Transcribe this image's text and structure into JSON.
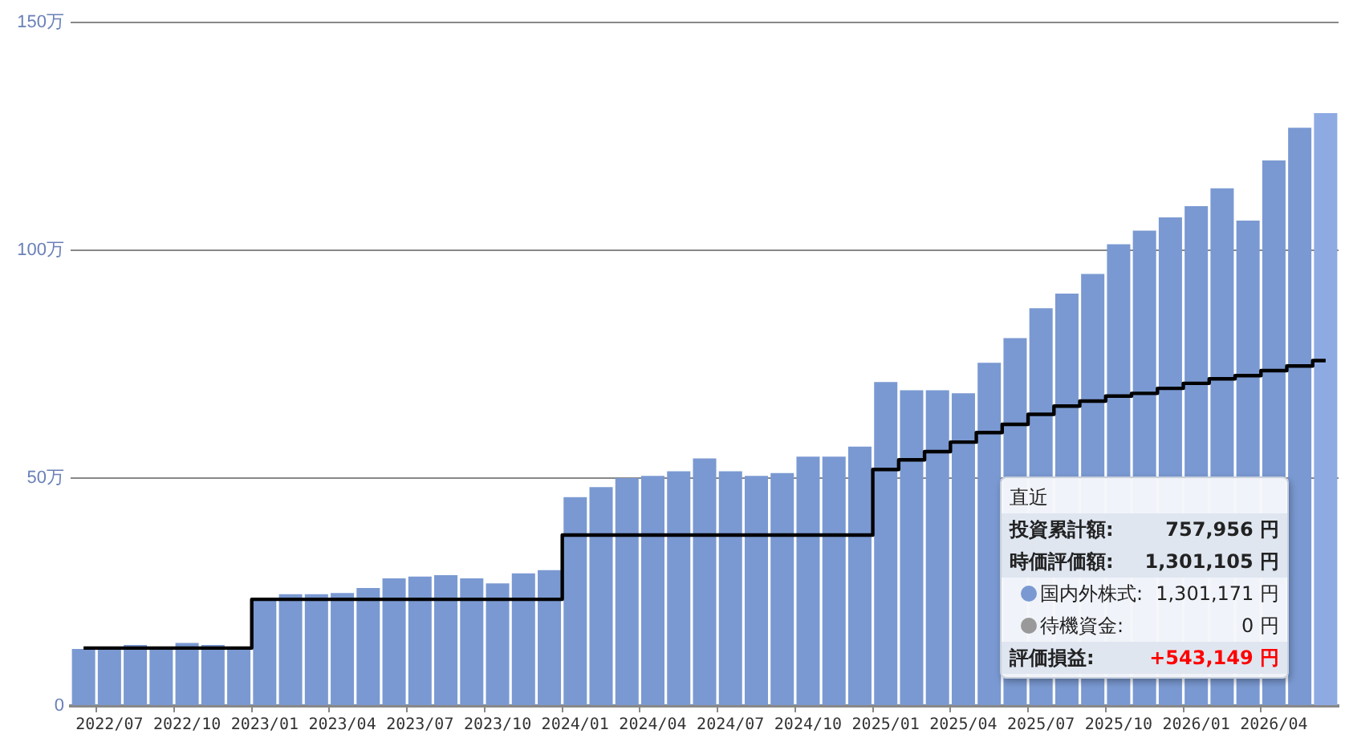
{
  "chart_data": {
    "type": "bar",
    "categories": [
      null,
      "2022/07",
      null,
      null,
      "2022/10",
      null,
      null,
      "2023/01",
      null,
      null,
      "2023/04",
      null,
      null,
      "2023/07",
      null,
      null,
      "2023/10",
      null,
      null,
      "2024/01",
      null,
      null,
      "2024/04",
      null,
      null,
      "2024/07",
      null,
      null,
      "2024/10",
      null,
      null,
      "2025/01",
      null,
      null,
      "2025/04",
      null,
      null,
      "2025/07",
      null,
      null,
      "2025/10",
      null,
      null,
      "2026/01",
      null,
      null,
      "2026/04",
      null,
      null
    ],
    "series": [
      {
        "color": "#7a99d2",
        "colors": [
          "#7a99d2",
          "#7a99d2",
          "#7a99d2",
          "#7a99d2",
          "#7a99d2",
          "#7a99d2",
          "#7a99d2",
          "#7a99d2",
          "#7a99d2",
          "#7a99d2",
          "#7a99d2",
          "#7a99d2",
          "#7a99d2",
          "#7a99d2",
          "#7a99d2",
          "#7a99d2",
          "#7a99d2",
          "#7a99d2",
          "#7a99d2",
          "#7a99d2",
          "#7a99d2",
          "#7a99d2",
          "#7a99d2",
          "#7a99d2",
          "#7a99d2",
          "#7a99d2",
          "#7a99d2",
          "#7a99d2",
          "#7a99d2",
          "#7a99d2",
          "#7a99d2",
          "#7a99d2",
          "#7a99d2",
          "#7a99d2",
          "#7a99d2",
          "#7a99d2",
          "#7a99d2",
          "#7a99d2",
          "#7a99d2",
          "#7a99d2",
          "#7a99d2",
          "#7a99d2",
          "#7a99d2",
          "#7a99d2",
          "#7a99d2",
          "#7a99d2",
          "#7a99d2",
          "#7a99d2",
          "#8eaae3"
        ],
        "values": [
          12.5,
          12.8,
          13.4,
          12.5,
          13.8,
          13.4,
          12.5,
          23.7,
          24.5,
          24.5,
          24.8,
          25.9,
          28.0,
          28.4,
          28.7,
          28.0,
          26.9,
          29.1,
          29.8,
          45.8,
          48.0,
          50.0,
          50.5,
          51.5,
          54.3,
          51.5,
          50.5,
          51.1,
          54.7,
          54.7,
          56.9,
          71.1,
          69.3,
          69.3,
          68.6,
          75.3,
          80.7,
          87.3,
          90.5,
          94.8,
          101.3,
          104.3,
          107.2,
          109.7,
          113.6,
          106.5,
          119.7,
          126.9,
          130.1
        ]
      },
      {
        "type": "step",
        "color": "#000000",
        "values": [
          12.7,
          12.7,
          12.7,
          12.7,
          12.7,
          12.7,
          12.7,
          23.4,
          23.4,
          23.4,
          23.4,
          23.4,
          23.4,
          23.4,
          23.4,
          23.4,
          23.4,
          23.4,
          23.4,
          37.5,
          37.5,
          37.5,
          37.5,
          37.5,
          37.5,
          37.5,
          37.5,
          37.5,
          37.5,
          37.5,
          37.5,
          51.9,
          54.0,
          55.8,
          57.9,
          60.0,
          61.8,
          64.0,
          65.8,
          66.9,
          68.0,
          68.6,
          69.7,
          70.8,
          71.8,
          72.5,
          73.6,
          74.6,
          75.8
        ]
      }
    ],
    "ylim": [
      0,
      150
    ],
    "yticks": [
      0,
      {
        "value": 50,
        "label": "50万"
      },
      {
        "value": 100,
        "label": "100万"
      },
      {
        "value": 150,
        "label": "150万"
      }
    ],
    "grid": "y",
    "legend": false,
    "annotations": [
      "直近",
      "投資累計額:",
      "757,956 円",
      "時価評価額:",
      "1,301,105 円",
      "国内外株式:",
      "1,301,171 円",
      "待機資金:",
      "0 円",
      "評価損益:",
      "+543,149 円"
    ]
  }
}
